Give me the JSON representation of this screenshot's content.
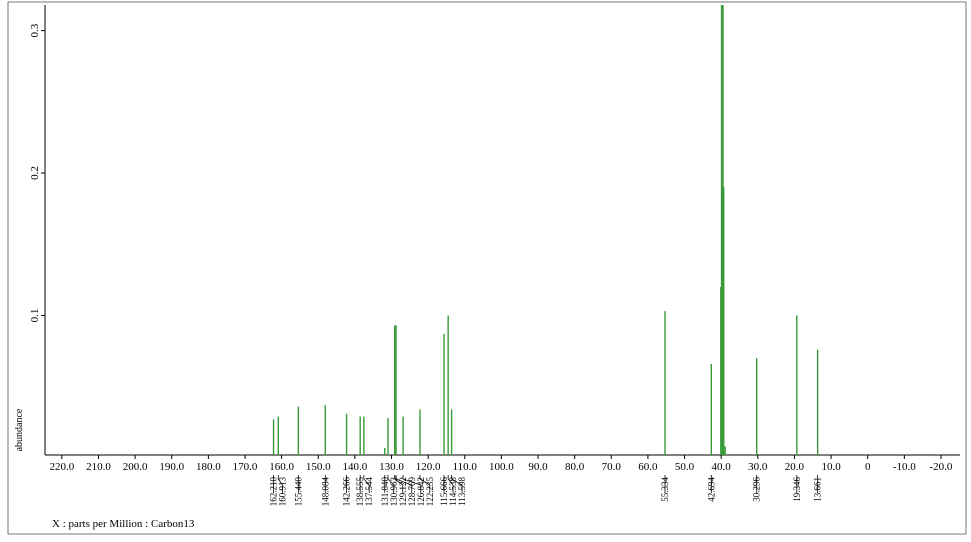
{
  "chart_data": {
    "type": "spectrum",
    "x_label": "X : parts per Million : Carbon13",
    "y_label": "abundance",
    "color": "#3a9a3a",
    "xlim": [
      224.6,
      -25.2
    ],
    "ylim": [
      0.002,
      0.318
    ],
    "xticks": [
      {
        "value": 220,
        "label": "220.0"
      },
      {
        "value": 210,
        "label": "210.0"
      },
      {
        "value": 200,
        "label": "200.0"
      },
      {
        "value": 190,
        "label": "190.0"
      },
      {
        "value": 180,
        "label": "180.0"
      },
      {
        "value": 170,
        "label": "170.0"
      },
      {
        "value": 160,
        "label": "160.0"
      },
      {
        "value": 150,
        "label": "150.0"
      },
      {
        "value": 140,
        "label": "140.0"
      },
      {
        "value": 130,
        "label": "130.0"
      },
      {
        "value": 120,
        "label": "120.0"
      },
      {
        "value": 110,
        "label": "110.0"
      },
      {
        "value": 100,
        "label": "100.0"
      },
      {
        "value": 90,
        "label": "90.0"
      },
      {
        "value": 80,
        "label": "80.0"
      },
      {
        "value": 70,
        "label": "70.0"
      },
      {
        "value": 60,
        "label": "60.0"
      },
      {
        "value": 50,
        "label": "50.0"
      },
      {
        "value": 40,
        "label": "40.0"
      },
      {
        "value": 30,
        "label": "30.0"
      },
      {
        "value": 20,
        "label": "20.0"
      },
      {
        "value": 10,
        "label": "10.0"
      },
      0,
      {
        "value": -10,
        "label": "-10.0"
      },
      {
        "value": -20,
        "label": "-20.0"
      }
    ],
    "yticks": [
      0.1,
      0.2,
      0.3
    ],
    "peaks": [
      {
        "x": 162.21,
        "label": "162.210",
        "y": 0.027
      },
      {
        "x": 160.913,
        "label": "160.913",
        "y": 0.029
      },
      {
        "x": 155.44,
        "label": "155.440",
        "y": 0.036
      },
      {
        "x": 148.084,
        "label": "148.084",
        "y": 0.037
      },
      {
        "x": 142.266,
        "label": "142.266",
        "y": 0.031
      },
      {
        "x": 138.555,
        "label": "138.555",
        "y": 0.029
      },
      {
        "x": 137.544,
        "label": "137.544",
        "y": 0.029
      },
      {
        "x": 131.84,
        "label": "131.840",
        "y": 0.007
      },
      {
        "x": 130.963,
        "label": "130.963",
        "y": 0.028
      },
      {
        "x": 129.122,
        "label": "129.122",
        "y": 0.093
      },
      {
        "x": 128.769,
        "label": "128.769",
        "y": 0.093
      },
      {
        "x": 126.842,
        "label": "126.842",
        "y": 0.029
      },
      {
        "x": 122.235,
        "label": "122.235",
        "y": 0.034
      },
      {
        "x": 115.666,
        "label": "115.666",
        "y": 0.087
      },
      {
        "x": 114.538,
        "label": "114.538",
        "y": 0.1
      },
      {
        "x": 113.598,
        "label": "113.598",
        "y": 0.034
      },
      {
        "x": 55.334,
        "label": "55.334",
        "y": 0.103
      },
      {
        "x": 42.694,
        "label": "42.694",
        "y": 0.066
      },
      {
        "x": 40.1,
        "y": 0.12
      },
      {
        "x": 39.9,
        "y": 0.32
      },
      {
        "x": 39.7,
        "y": 0.32
      },
      {
        "x": 39.5,
        "y": 0.32
      },
      {
        "x": 39.3,
        "y": 0.19
      },
      {
        "x": 38.9,
        "y": 0.008
      },
      {
        "x": 30.296,
        "label": "30.296",
        "y": 0.07
      },
      {
        "x": 19.346,
        "label": "19.346",
        "y": 0.1
      },
      {
        "x": 13.661,
        "label": "13.661",
        "y": 0.076
      }
    ]
  }
}
